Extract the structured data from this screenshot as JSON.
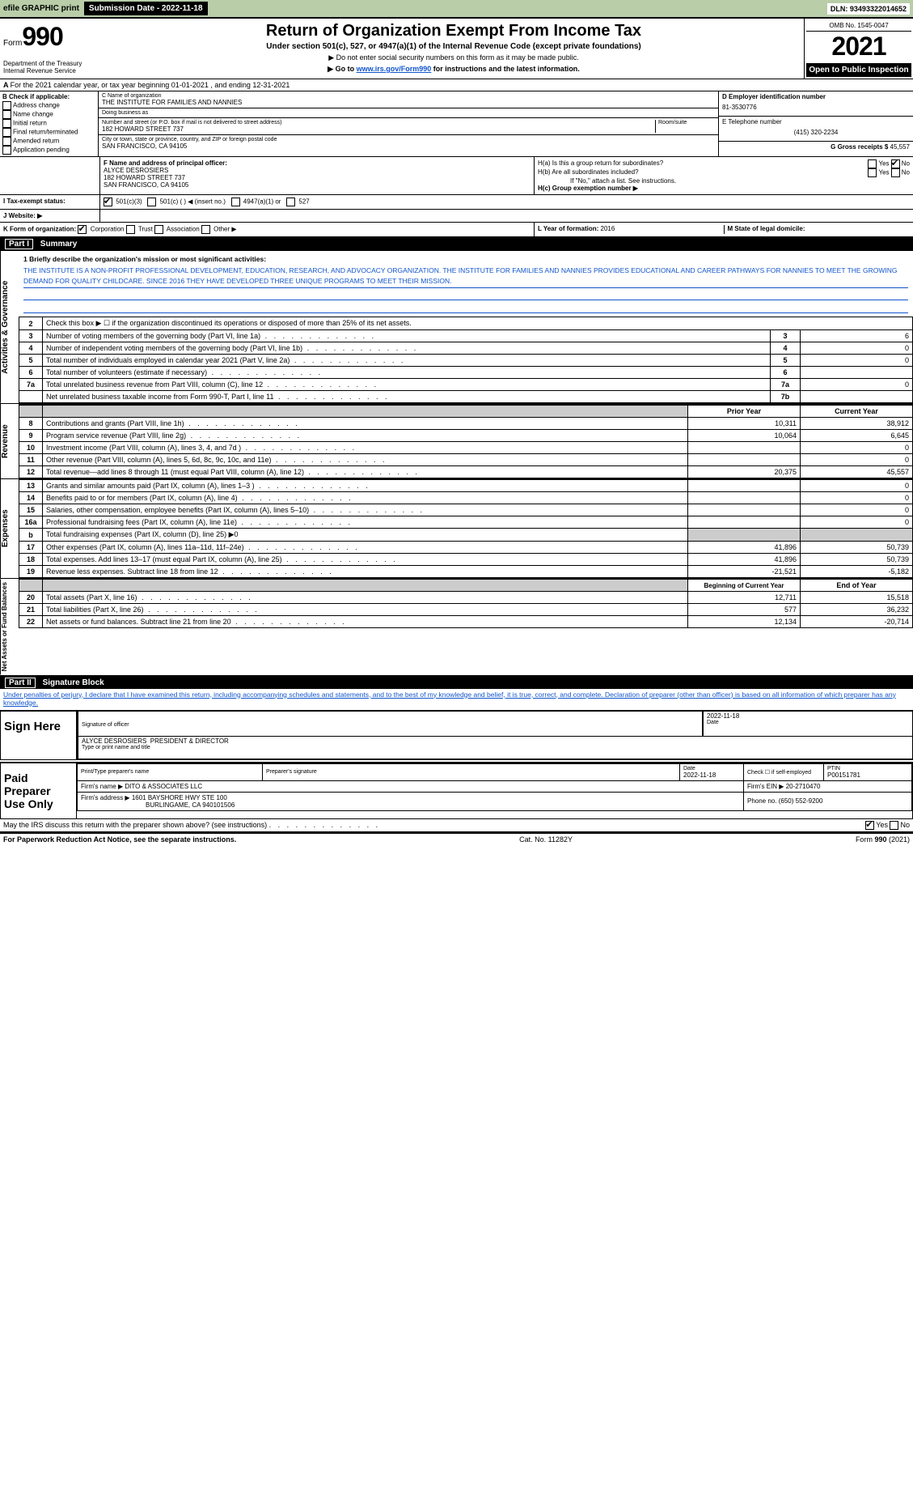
{
  "topbar": {
    "efile": "efile GRAPHIC print",
    "submission": "Submission Date - 2022-11-18",
    "dln": "DLN: 93493322014652"
  },
  "header": {
    "form_word": "Form",
    "form_num": "990",
    "title": "Return of Organization Exempt From Income Tax",
    "subtitle": "Under section 501(c), 527, or 4947(a)(1) of the Internal Revenue Code (except private foundations)",
    "ssn_note": "▶ Do not enter social security numbers on this form as it may be made public.",
    "goto_pre": "▶ Go to ",
    "goto_link": "www.irs.gov/Form990",
    "goto_post": " for instructions and the latest information.",
    "omb": "OMB No. 1545-0047",
    "year": "2021",
    "open": "Open to Public Inspection",
    "dept": "Department of the Treasury Internal Revenue Service"
  },
  "period": "For the 2021 calendar year, or tax year beginning 01-01-2021    , and ending 12-31-2021",
  "checkB": {
    "label": "B Check if applicable:",
    "items": [
      "Address change",
      "Name change",
      "Initial return",
      "Final return/terminated",
      "Amended return",
      "Application pending"
    ]
  },
  "orgC": {
    "name_label": "C Name of organization",
    "name": "THE INSTITUTE FOR FAMILIES AND NANNIES",
    "dba_label": "Doing business as",
    "addr_label": "Number and street (or P.O. box if mail is not delivered to street address)",
    "room_label": "Room/suite",
    "addr": "182 HOWARD STREET 737",
    "city_label": "City or town, state or province, country, and ZIP or foreign postal code",
    "city": "SAN FRANCISCO, CA  94105"
  },
  "colD": {
    "ein_label": "D Employer identification number",
    "ein": "81-3530776",
    "tel_label": "E Telephone number",
    "tel": "(415) 320-2234",
    "gross_label": "G Gross receipts $",
    "gross": "45,557"
  },
  "rowFH": {
    "f_label": "F Name and address of principal officer:",
    "f_name": "ALYCE DESROSIERS",
    "f_addr1": "182 HOWARD STREET 737",
    "f_addr2": "SAN FRANCISCO, CA  94105",
    "ha_label": "H(a)  Is this a group return for subordinates?",
    "hb_label": "H(b)  Are all subordinates included?",
    "hb_note": "If \"No,\" attach a list. See instructions.",
    "hc_label": "H(c)  Group exemption number ▶",
    "yes": "Yes",
    "no": "No"
  },
  "rowI": {
    "label": "I   Tax-exempt status:",
    "c3": "501(c)(3)",
    "c": "501(c) (    ) ◀ (insert no.)",
    "a4947": "4947(a)(1) or",
    "s527": "527"
  },
  "rowJ": {
    "label": "J   Website: ▶"
  },
  "rowK": {
    "k_label": "K Form of organization:",
    "corp": "Corporation",
    "trust": "Trust",
    "assoc": "Association",
    "other": "Other ▶",
    "l_label": "L Year of formation: ",
    "l_val": "2016",
    "m_label": "M State of legal domicile:"
  },
  "part1": {
    "hdr_num": "Part I",
    "hdr_title": "Summary",
    "mission_label": "1  Briefly describe the organization's mission or most significant activities:",
    "mission": "THE INSTITUTE IS A NON-PROFIT PROFESSIONAL DEVELOPMENT, EDUCATION, RESEARCH, AND ADVOCACY ORGANIZATION. THE INSTITUTE FOR FAMILIES AND NANNIES PROVIDES EDUCATIONAL AND CAREER PATHWAYS FOR NANNIES TO MEET THE GROWING DEMAND FOR QUALITY CHILDCARE. SINCE 2016 THEY HAVE DEVELOPED THREE UNIQUE PROGRAMS TO MEET THEIR MISSION.",
    "prior_hdr": "Prior Year",
    "curr_hdr": "Current Year",
    "boy_hdr": "Beginning of Current Year",
    "eoy_hdr": "End of Year",
    "side_gov": "Activities & Governance",
    "side_rev": "Revenue",
    "side_exp": "Expenses",
    "side_net": "Net Assets or Fund Balances",
    "lines_gov": [
      {
        "n": "2",
        "t": "Check this box ▶ ☐ if the organization discontinued its operations or disposed of more than 25% of its net assets."
      },
      {
        "n": "3",
        "t": "Number of voting members of the governing body (Part VI, line 1a)",
        "c": "3",
        "v": "6"
      },
      {
        "n": "4",
        "t": "Number of independent voting members of the governing body (Part VI, line 1b)",
        "c": "4",
        "v": "0"
      },
      {
        "n": "5",
        "t": "Total number of individuals employed in calendar year 2021 (Part V, line 2a)",
        "c": "5",
        "v": "0"
      },
      {
        "n": "6",
        "t": "Total number of volunteers (estimate if necessary)",
        "c": "6",
        "v": ""
      },
      {
        "n": "7a",
        "t": "Total unrelated business revenue from Part VIII, column (C), line 12",
        "c": "7a",
        "v": "0"
      },
      {
        "n": "",
        "t": "Net unrelated business taxable income from Form 990-T, Part I, line 11",
        "c": "7b",
        "v": ""
      }
    ],
    "lines_rev": [
      {
        "n": "8",
        "t": "Contributions and grants (Part VIII, line 1h)",
        "p": "10,311",
        "c": "38,912"
      },
      {
        "n": "9",
        "t": "Program service revenue (Part VIII, line 2g)",
        "p": "10,064",
        "c": "6,645"
      },
      {
        "n": "10",
        "t": "Investment income (Part VIII, column (A), lines 3, 4, and 7d )",
        "p": "",
        "c": "0"
      },
      {
        "n": "11",
        "t": "Other revenue (Part VIII, column (A), lines 5, 6d, 8c, 9c, 10c, and 11e)",
        "p": "",
        "c": "0"
      },
      {
        "n": "12",
        "t": "Total revenue—add lines 8 through 11 (must equal Part VIII, column (A), line 12)",
        "p": "20,375",
        "c": "45,557"
      }
    ],
    "lines_exp": [
      {
        "n": "13",
        "t": "Grants and similar amounts paid (Part IX, column (A), lines 1–3 )",
        "p": "",
        "c": "0"
      },
      {
        "n": "14",
        "t": "Benefits paid to or for members (Part IX, column (A), line 4)",
        "p": "",
        "c": "0"
      },
      {
        "n": "15",
        "t": "Salaries, other compensation, employee benefits (Part IX, column (A), lines 5–10)",
        "p": "",
        "c": "0"
      },
      {
        "n": "16a",
        "t": "Professional fundraising fees (Part IX, column (A), line 11e)",
        "p": "",
        "c": "0"
      },
      {
        "n": "b",
        "t": "Total fundraising expenses (Part IX, column (D), line 25) ▶0",
        "nb": true
      },
      {
        "n": "17",
        "t": "Other expenses (Part IX, column (A), lines 11a–11d, 11f–24e)",
        "p": "41,896",
        "c": "50,739"
      },
      {
        "n": "18",
        "t": "Total expenses. Add lines 13–17 (must equal Part IX, column (A), line 25)",
        "p": "41,896",
        "c": "50,739"
      },
      {
        "n": "19",
        "t": "Revenue less expenses. Subtract line 18 from line 12",
        "p": "-21,521",
        "c": "-5,182"
      }
    ],
    "lines_net": [
      {
        "n": "20",
        "t": "Total assets (Part X, line 16)",
        "p": "12,711",
        "c": "15,518"
      },
      {
        "n": "21",
        "t": "Total liabilities (Part X, line 26)",
        "p": "577",
        "c": "36,232"
      },
      {
        "n": "22",
        "t": "Net assets or fund balances. Subtract line 21 from line 20",
        "p": "12,134",
        "c": "-20,714"
      }
    ]
  },
  "part2": {
    "hdr_num": "Part II",
    "hdr_title": "Signature Block",
    "decl": "Under penalties of perjury, I declare that I have examined this return, including accompanying schedules and statements, and to the best of my knowledge and belief, it is true, correct, and complete. Declaration of preparer (other than officer) is based on all information of which preparer has any knowledge.",
    "sign_here": "Sign Here",
    "sig_officer": "Signature of officer",
    "sig_date": "2022-11-18",
    "date_lbl": "Date",
    "name_title": "ALYCE DESROSIERS  R°38;°02;PRESIDENT & DIRECTOR",
    "name_lbl": "Type or print name and title",
    "paid": "Paid Preparer Use Only",
    "prep_name_lbl": "Print/Type preparer's name",
    "prep_sig_lbl": "Preparer's signature",
    "prep_date": "2022-11-18",
    "self_emp": "Check ☐ if self-employed",
    "ptin_lbl": "PTIN",
    "ptin": "P00151781",
    "firm_name_lbl": "Firm's name   ▶",
    "firm_name": "DITO & ASSOCIATES LLC",
    "firm_ein_lbl": "Firm's EIN ▶",
    "firm_ein": "20-2710470",
    "firm_addr_lbl": "Firm's address ▶",
    "firm_addr1": "1601 BAYSHORE HWY STE 100",
    "firm_addr2": "BURLINGAME, CA  940101506",
    "phone_lbl": "Phone no.",
    "phone": "(650) 552-9200",
    "irs_discuss": "May the IRS discuss this return with the preparer shown above? (see instructions)"
  },
  "footer": {
    "paperwork": "For Paperwork Reduction Act Notice, see the separate instructions.",
    "cat": "Cat. No. 11282Y",
    "form": "Form 990 (2021)"
  }
}
